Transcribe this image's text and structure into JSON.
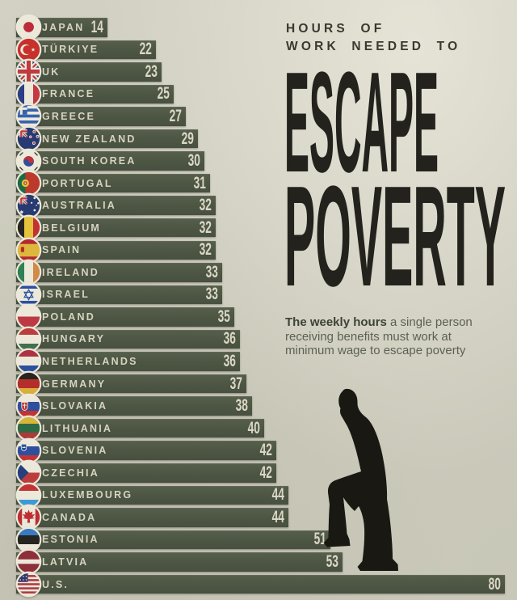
{
  "title_block": {
    "eyebrow_line1": "HOURS OF",
    "eyebrow_line2": "WORK NEEDED TO",
    "headline_line1": "ESCAPE",
    "headline_line2": "POVERTY"
  },
  "subtitle": {
    "lead": "The weekly hours",
    "rest": " a single person receiving benefits must work at minimum wage to escape poverty"
  },
  "icons": {
    "silhouette": "person-climbing-stairs-silhouette",
    "flag_suffix": "-flag-icon"
  },
  "colors": {
    "background": "#cdccbd",
    "bar": "#4d5543",
    "bar_text": "#d8d5c3",
    "headline": "#23221d",
    "eyebrow": "#393930",
    "subtitle_text": "#5d6153",
    "silhouette": "#191813"
  },
  "chart_data": {
    "type": "bar",
    "orientation": "horizontal",
    "title": "Hours of work needed to escape poverty",
    "unit": "hours",
    "xlim": [
      0,
      80
    ],
    "legend": "none",
    "rows": [
      {
        "country": "JAPAN",
        "value": 14,
        "code": "jp",
        "flag": "japan-flag-icon"
      },
      {
        "country": "TÜRKIYE",
        "value": 22,
        "code": "tr",
        "flag": "turkiye-flag-icon"
      },
      {
        "country": "UK",
        "value": 23,
        "code": "gb",
        "flag": "uk-flag-icon"
      },
      {
        "country": "FRANCE",
        "value": 25,
        "code": "fr",
        "flag": "france-flag-icon"
      },
      {
        "country": "GREECE",
        "value": 27,
        "code": "gr",
        "flag": "greece-flag-icon"
      },
      {
        "country": "NEW ZEALAND",
        "value": 29,
        "code": "nz",
        "flag": "new-zealand-flag-icon"
      },
      {
        "country": "SOUTH KOREA",
        "value": 30,
        "code": "kr",
        "flag": "south-korea-flag-icon"
      },
      {
        "country": "PORTUGAL",
        "value": 31,
        "code": "pt",
        "flag": "portugal-flag-icon"
      },
      {
        "country": "AUSTRALIA",
        "value": 32,
        "code": "au",
        "flag": "australia-flag-icon"
      },
      {
        "country": "BELGIUM",
        "value": 32,
        "code": "be",
        "flag": "belgium-flag-icon"
      },
      {
        "country": "SPAIN",
        "value": 32,
        "code": "es",
        "flag": "spain-flag-icon"
      },
      {
        "country": "IRELAND",
        "value": 33,
        "code": "ie",
        "flag": "ireland-flag-icon"
      },
      {
        "country": "ISRAEL",
        "value": 33,
        "code": "il",
        "flag": "israel-flag-icon"
      },
      {
        "country": "POLAND",
        "value": 35,
        "code": "pl",
        "flag": "poland-flag-icon"
      },
      {
        "country": "HUNGARY",
        "value": 36,
        "code": "hu",
        "flag": "hungary-flag-icon"
      },
      {
        "country": "NETHERLANDS",
        "value": 36,
        "code": "nl",
        "flag": "netherlands-flag-icon"
      },
      {
        "country": "GERMANY",
        "value": 37,
        "code": "de",
        "flag": "germany-flag-icon"
      },
      {
        "country": "SLOVAKIA",
        "value": 38,
        "code": "sk",
        "flag": "slovakia-flag-icon"
      },
      {
        "country": "LITHUANIA",
        "value": 40,
        "code": "lt",
        "flag": "lithuania-flag-icon"
      },
      {
        "country": "SLOVENIA",
        "value": 42,
        "code": "si",
        "flag": "slovenia-flag-icon"
      },
      {
        "country": "CZECHIA",
        "value": 42,
        "code": "cz",
        "flag": "czechia-flag-icon"
      },
      {
        "country": "LUXEMBOURG",
        "value": 44,
        "code": "lu",
        "flag": "luxembourg-flag-icon"
      },
      {
        "country": "CANADA",
        "value": 44,
        "code": "ca",
        "flag": "canada-flag-icon"
      },
      {
        "country": "ESTONIA",
        "value": 51,
        "code": "ee",
        "flag": "estonia-flag-icon"
      },
      {
        "country": "LATVIA",
        "value": 53,
        "code": "lv",
        "flag": "latvia-flag-icon"
      },
      {
        "country": "U.S.",
        "value": 80,
        "code": "us",
        "flag": "us-flag-icon"
      }
    ]
  }
}
